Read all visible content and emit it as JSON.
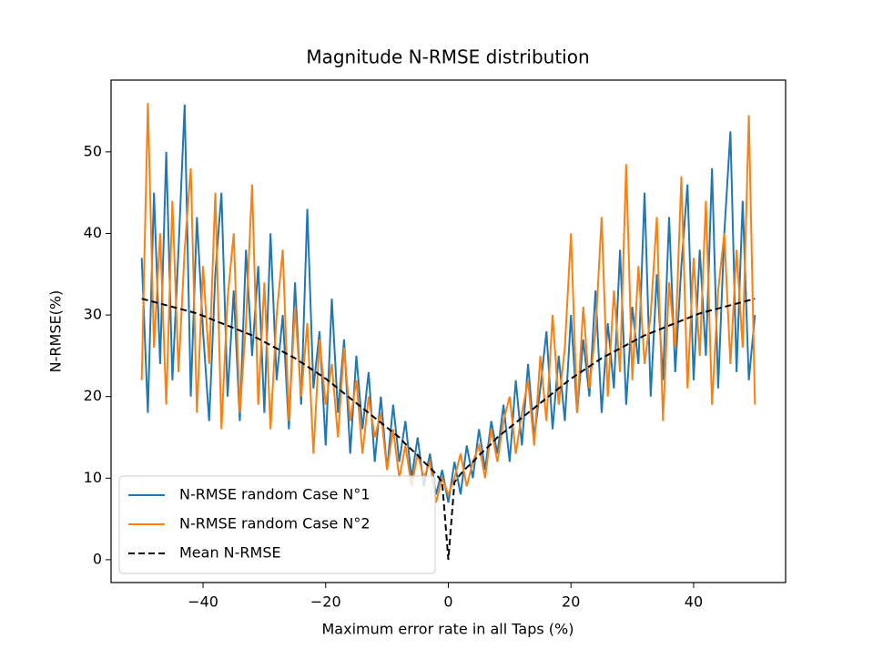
{
  "chart_data": {
    "type": "line",
    "title": "Magnitude N-RMSE distribution",
    "xlabel": "Maximum error rate in all Taps (%)",
    "ylabel": "N-RMSE(%)",
    "x": [
      -50,
      -49,
      -48,
      -47,
      -46,
      -45,
      -44,
      -43,
      -42,
      -41,
      -40,
      -39,
      -38,
      -37,
      -36,
      -35,
      -34,
      -33,
      -32,
      -31,
      -30,
      -29,
      -28,
      -27,
      -26,
      -25,
      -24,
      -23,
      -22,
      -21,
      -20,
      -19,
      -18,
      -17,
      -16,
      -15,
      -14,
      -13,
      -12,
      -11,
      -10,
      -9,
      -8,
      -7,
      -6,
      -5,
      -4,
      -3,
      -2,
      -1,
      0,
      1,
      2,
      3,
      4,
      5,
      6,
      7,
      8,
      9,
      10,
      11,
      12,
      13,
      14,
      15,
      16,
      17,
      18,
      19,
      20,
      21,
      22,
      23,
      24,
      25,
      26,
      27,
      28,
      29,
      30,
      31,
      32,
      33,
      34,
      35,
      36,
      37,
      38,
      39,
      40,
      41,
      42,
      43,
      44,
      45,
      46,
      47,
      48,
      49,
      50
    ],
    "series": [
      {
        "name": "N-RMSE random Case N°1",
        "color": "#1f77b4",
        "linestyle": "solid",
        "values": [
          37,
          18,
          45,
          24,
          50,
          22,
          38,
          55.8,
          20,
          42,
          28,
          17,
          35,
          45,
          20,
          33,
          17,
          38,
          25,
          36,
          18,
          40,
          22,
          30,
          16,
          34,
          19,
          43,
          21,
          28,
          14,
          32,
          18,
          27,
          13,
          25,
          16,
          23,
          12,
          20,
          11,
          19,
          12,
          17,
          10,
          15,
          9,
          13,
          8,
          11,
          7,
          12,
          8,
          14,
          10,
          16,
          11,
          17,
          13,
          19,
          12,
          22,
          14,
          24,
          15,
          21,
          28,
          16,
          25,
          17,
          30,
          18,
          27,
          20,
          33,
          18,
          29,
          21,
          38,
          19,
          31,
          24,
          45,
          20,
          35,
          22,
          42,
          23,
          36,
          46,
          22,
          38,
          25,
          48,
          21,
          40,
          52.5,
          23,
          44,
          22,
          30
        ]
      },
      {
        "name": "N-RMSE random Case N°2",
        "color": "#ff7f0e",
        "linestyle": "solid",
        "values": [
          22,
          56,
          26,
          40,
          19,
          44,
          23,
          38,
          48,
          18,
          36,
          24,
          45,
          16,
          32,
          40,
          18,
          29,
          46,
          19,
          34,
          16,
          30,
          38,
          17,
          31,
          20,
          29,
          13,
          27,
          19,
          24,
          15,
          26,
          17,
          22,
          13,
          20,
          15,
          18,
          11,
          16,
          10,
          14,
          9,
          13,
          10,
          12,
          7,
          10,
          8,
          10,
          13,
          9,
          12,
          14,
          10,
          16,
          12,
          17,
          20,
          13,
          18,
          22,
          14,
          25,
          17,
          30,
          19,
          26,
          40,
          18,
          31,
          21,
          28,
          42,
          20,
          33,
          23,
          48.5,
          22,
          36,
          24,
          30,
          42,
          17,
          34,
          26,
          47,
          21,
          37,
          25,
          44,
          19,
          33,
          40,
          24,
          38,
          26,
          54.5,
          19
        ]
      },
      {
        "name": "Mean N-RMSE",
        "color": "#000000",
        "linestyle": "dashed",
        "values": [
          32,
          31.8,
          31.6,
          31.4,
          31.2,
          31,
          30.8,
          30.6,
          30.4,
          30.2,
          29.9,
          29.6,
          29.3,
          29,
          28.7,
          28.4,
          28.1,
          27.8,
          27.5,
          27.1,
          26.7,
          26.3,
          25.9,
          25.5,
          25.1,
          24.7,
          24.2,
          23.7,
          23.2,
          22.7,
          22.2,
          21.6,
          21,
          20.4,
          19.8,
          19.2,
          18.6,
          18,
          17.4,
          16.8,
          16.2,
          15.6,
          15,
          14.2,
          13.5,
          12.8,
          12,
          11.3,
          10.5,
          9.5,
          0,
          9.5,
          10.5,
          11.3,
          12,
          12.8,
          13.5,
          14.2,
          15,
          15.6,
          16.2,
          16.8,
          17.4,
          18,
          18.6,
          19.2,
          19.8,
          20.4,
          21,
          21.6,
          22.2,
          22.7,
          23.2,
          23.7,
          24.2,
          24.7,
          25.1,
          25.5,
          25.9,
          26.3,
          26.7,
          27.1,
          27.5,
          27.8,
          28.1,
          28.4,
          28.7,
          29,
          29.3,
          29.6,
          29.9,
          30.2,
          30.4,
          30.6,
          30.8,
          31,
          31.2,
          31.4,
          31.6,
          31.8,
          32
        ]
      }
    ],
    "xlim": [
      -55,
      55
    ],
    "ylim": [
      -2.8,
      58.8
    ],
    "xticks": [
      {
        "value": -40,
        "label": "−40"
      },
      {
        "value": -20,
        "label": "−20"
      },
      0,
      20,
      40
    ],
    "yticks": [
      0,
      10,
      20,
      30,
      40,
      50
    ],
    "legend": "lower left"
  }
}
